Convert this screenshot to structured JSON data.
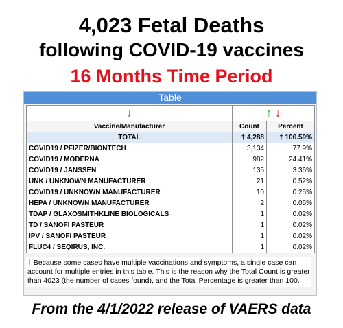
{
  "headline": {
    "line1": "4,023 Fetal Deaths",
    "line2": "following COVID-19 vaccines",
    "line3": "16 Months Time Period"
  },
  "table": {
    "caption": "Table",
    "sort_arrows": {
      "vaccine": "↓",
      "count_up": "↑",
      "count_down": "↓"
    },
    "headers": {
      "vaccine": "Vaccine/Manufacturer",
      "count": "Count",
      "percent": "Percent"
    },
    "total": {
      "label": "TOTAL",
      "count": "† 4,288",
      "percent": "† 106.59%"
    },
    "rows": [
      {
        "vaccine": "COVID19 / PFIZER/BIONTECH",
        "count": "3,134",
        "percent": "77.9%"
      },
      {
        "vaccine": "COVID19 / MODERNA",
        "count": "982",
        "percent": "24.41%"
      },
      {
        "vaccine": "COVID19 / JANSSEN",
        "count": "135",
        "percent": "3.36%"
      },
      {
        "vaccine": "UNK / UNKNOWN MANUFACTURER",
        "count": "21",
        "percent": "0.52%"
      },
      {
        "vaccine": "COVID19 / UNKNOWN MANUFACTURER",
        "count": "10",
        "percent": "0.25%"
      },
      {
        "vaccine": "HEPA / UNKNOWN MANUFACTURER",
        "count": "2",
        "percent": "0.05%"
      },
      {
        "vaccine": "TDAP / GLAXOSMITHKLINE BIOLOGICALS",
        "count": "1",
        "percent": "0.02%"
      },
      {
        "vaccine": "TD / SANOFI PASTEUR",
        "count": "1",
        "percent": "0.02%"
      },
      {
        "vaccine": "IPV / SANOFI PASTEUR",
        "count": "1",
        "percent": "0.02%"
      },
      {
        "vaccine": "FLUC4 / SEQIRUS, INC.",
        "count": "1",
        "percent": "0.02%"
      }
    ],
    "footnote": "† Because some cases have multiple vaccinations and symptoms, a single case can account for multiple entries in this table. This is the reason why the Total Count is greater than 4023 (the number of cases found), and the Total Percentage is greater than 100."
  },
  "footer": "From the 4/1/2022 release of VAERS data",
  "colors": {
    "headline_red": "#e5101a",
    "caption_blue": "#4e8fd7",
    "arrow_green": "#27b627",
    "arrow_red": "#e01b1b"
  }
}
